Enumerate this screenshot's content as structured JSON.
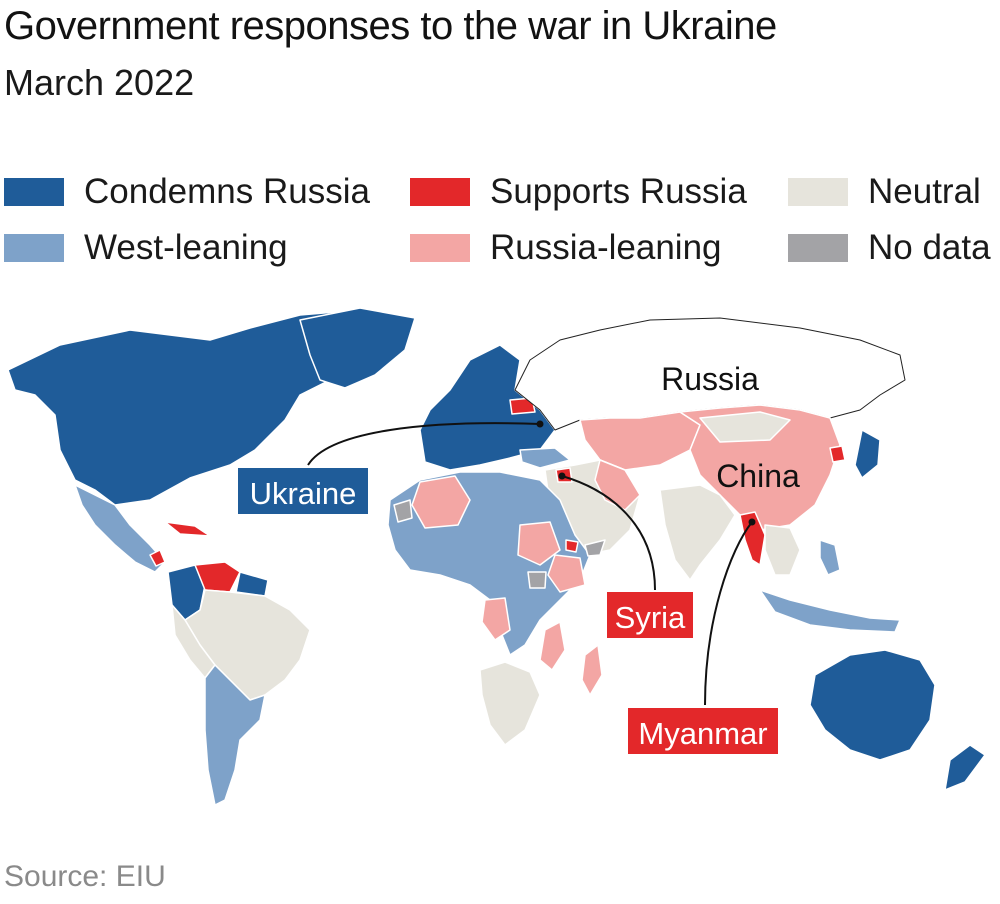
{
  "title": "Government responses to the war in Ukraine",
  "subtitle": "March 2022",
  "source": "Source: EIU",
  "colors": {
    "condemns": "#1f5c99",
    "west_leaning": "#7ea2c9",
    "supports": "#e3282a",
    "russia_leaning": "#f3a6a4",
    "neutral": "#e6e4dc",
    "no_data": "#a3a3a6",
    "russia_fill": "#ffffff",
    "border": "#ffffff"
  },
  "legend": [
    {
      "label": "Condemns Russia",
      "color_key": "condemns"
    },
    {
      "label": "West-leaning",
      "color_key": "west_leaning"
    },
    {
      "label": "Supports Russia",
      "color_key": "supports"
    },
    {
      "label": "Russia-leaning",
      "color_key": "russia_leaning"
    },
    {
      "label": "Neutral",
      "color_key": "neutral"
    },
    {
      "label": "No data",
      "color_key": "no_data"
    }
  ],
  "map": {
    "labels": {
      "russia": "Russia",
      "china": "China"
    },
    "callouts": {
      "ukraine": "Ukraine",
      "syria": "Syria",
      "myanmar": "Myanmar"
    }
  }
}
